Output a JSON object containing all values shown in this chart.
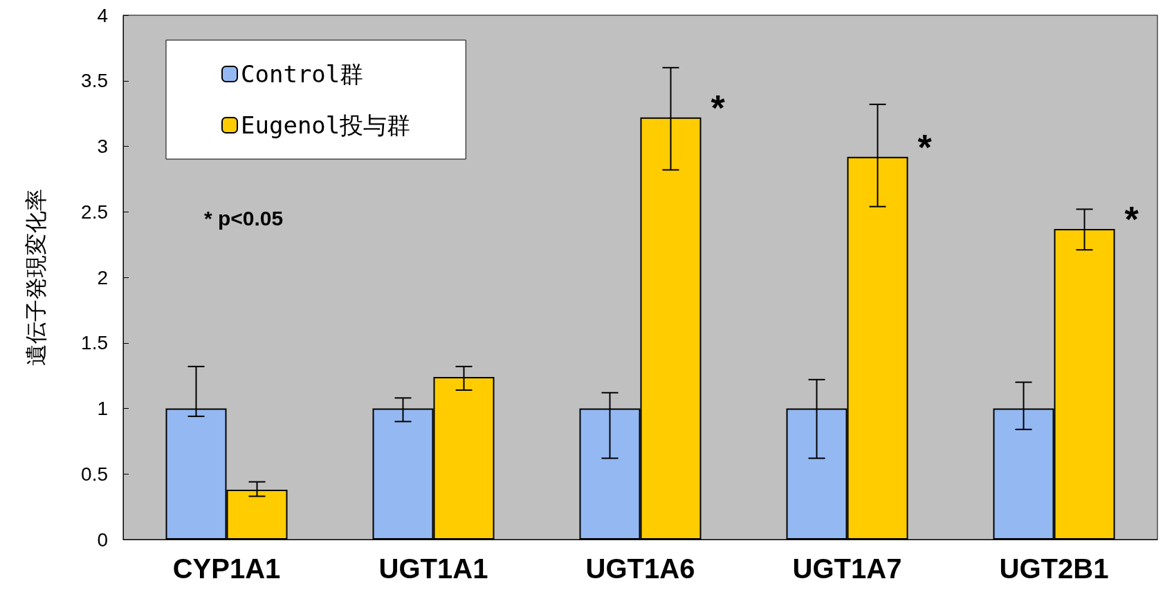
{
  "chart_data": {
    "type": "bar",
    "ylabel": "遺伝子発現変化率",
    "categories": [
      "CYP1A1",
      "UGT1A1",
      "UGT1A6",
      "UGT1A7",
      "UGT2B1"
    ],
    "series": [
      {
        "name": "Control群",
        "color": "#94b8f2",
        "values": [
          1,
          1,
          1,
          1,
          1
        ],
        "errors": [
          [
            0.94,
            1.32
          ],
          [
            0.9,
            1.08
          ],
          [
            0.62,
            1.12
          ],
          [
            0.62,
            1.22
          ],
          [
            0.84,
            1.2
          ]
        ]
      },
      {
        "name": "Eugenol投与群",
        "color": "#ffcc00",
        "values": [
          0.38,
          1.24,
          3.22,
          2.92,
          2.37
        ],
        "errors": [
          [
            0.33,
            0.44
          ],
          [
            1.14,
            1.32
          ],
          [
            2.82,
            3.6
          ],
          [
            2.54,
            3.32
          ],
          [
            2.21,
            2.52
          ]
        ]
      }
    ],
    "ylim": [
      0,
      4
    ],
    "yticks": [
      0,
      0.5,
      1,
      1.5,
      2,
      2.5,
      3,
      3.5,
      4
    ],
    "grid": false,
    "legend": "top left",
    "annotations": [
      {
        "text": "*",
        "x": "UGT1A6",
        "y": 3.22
      },
      {
        "text": "*",
        "x": "UGT1A7",
        "y": 2.92
      },
      {
        "text": "*",
        "x": "UGT2B1",
        "y": 2.37
      },
      "* p<0.05"
    ]
  }
}
